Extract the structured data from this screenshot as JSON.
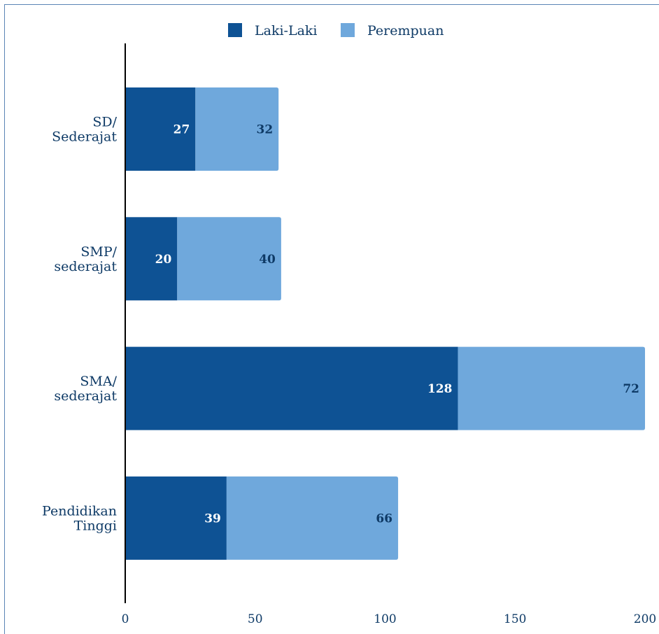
{
  "chart_data": {
    "type": "bar",
    "orientation": "horizontal",
    "stacked": true,
    "categories": [
      [
        "SD/",
        "Sederajat"
      ],
      [
        "SMP/",
        "sederajat"
      ],
      [
        "SMA/",
        "sederajat"
      ],
      [
        "Pendidikan",
        "Tinggi"
      ]
    ],
    "series": [
      {
        "name": "Laki-Laki",
        "values": [
          27,
          20,
          128,
          39
        ],
        "color": "#0e5294"
      },
      {
        "name": "Perempuan",
        "values": [
          32,
          40,
          72,
          66
        ],
        "color": "#6fa8dc"
      }
    ],
    "xlim": [
      0,
      200
    ],
    "xticks": [
      "0",
      "50",
      "100",
      "150",
      "200"
    ],
    "legend_position": "top",
    "grid": false,
    "colors": {
      "text": "#0e3a66",
      "label_on_dark": "#ffffff",
      "label_on_light": "#0e3a66",
      "axis": "#000000",
      "frame": "#5b84b5"
    }
  }
}
